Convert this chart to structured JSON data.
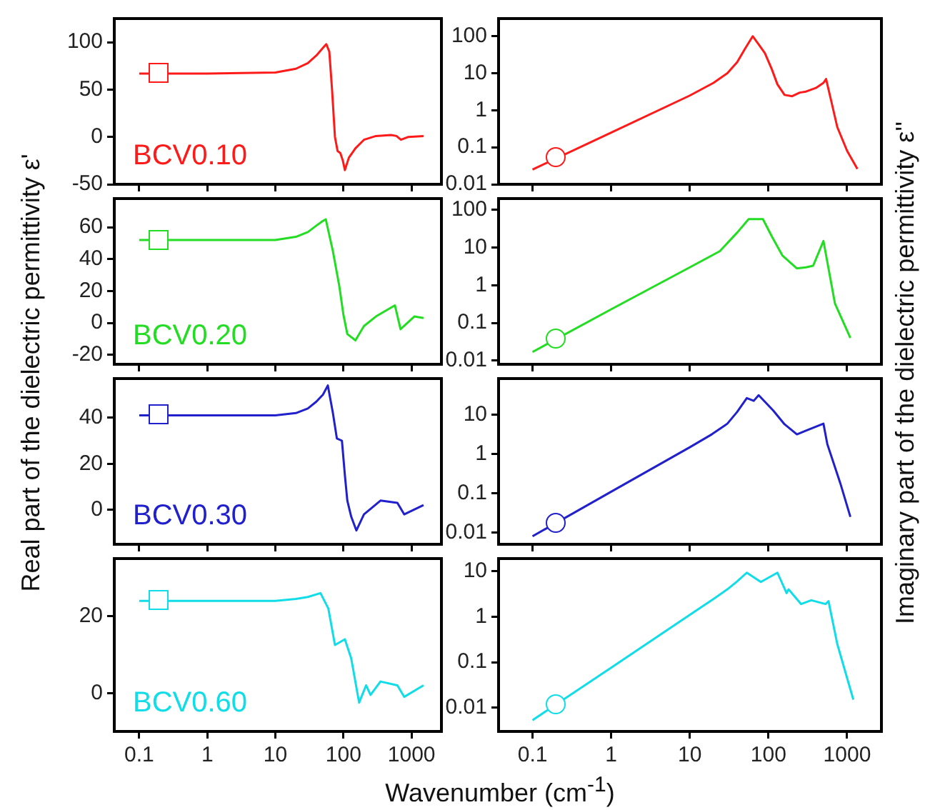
{
  "chart_data": [
    {
      "type": "line",
      "ylabel": "Real part of the dielectric permittivity ε'",
      "log": "x",
      "tick_labels": "y",
      "xlim": [
        0.043,
        2750
      ],
      "xticks": [
        0.1,
        1,
        10,
        100,
        1000
      ],
      "ylim": [
        -50,
        125
      ],
      "yticks": [
        -50,
        0,
        50,
        100
      ],
      "series": [
        {
          "name": "BCV0.10",
          "color": "#ff1a1a",
          "x": [
            0.1,
            1,
            10,
            20,
            30,
            40,
            50,
            56,
            62,
            68,
            75,
            82,
            90,
            98,
            105,
            120,
            150,
            200,
            300,
            500,
            600,
            700,
            900,
            1500
          ],
          "values": [
            67,
            67,
            68,
            72,
            78,
            86,
            94,
            98,
            90,
            50,
            0,
            -15,
            -17,
            -25,
            -35,
            -22,
            -12,
            -3,
            1,
            2,
            1,
            -3,
            0,
            1
          ]
        }
      ]
    },
    {
      "type": "line",
      "ylabel": "Imaginary part of the dielectric permittivity ε''",
      "log": "xy",
      "tick_labels": "y",
      "xlim": [
        0.037,
        2730
      ],
      "xticks": [
        0.1,
        1,
        10,
        100,
        1000
      ],
      "ylim": [
        0.01,
        300
      ],
      "yticks": [
        0.01,
        0.1,
        1,
        10,
        100
      ],
      "series": [
        {
          "color": "#ff1a1a",
          "x": [
            0.1,
            1,
            10,
            20,
            30,
            40,
            50,
            63,
            75,
            90,
            110,
            130,
            160,
            200,
            250,
            300,
            400,
            500,
            540,
            620,
            750,
            1000,
            1350
          ],
          "values": [
            0.025,
            0.25,
            2.5,
            5.5,
            10,
            20,
            45,
            100,
            60,
            35,
            13,
            5,
            2.6,
            2.4,
            3,
            3.2,
            4,
            5.5,
            7,
            2,
            0.35,
            0.08,
            0.026
          ]
        }
      ]
    },
    {
      "type": "line",
      "log": "x",
      "tick_labels": "y",
      "xlim": [
        0.043,
        2750
      ],
      "xticks": [
        0.1,
        1,
        10,
        100,
        1000
      ],
      "ylim": [
        -26,
        78
      ],
      "yticks": [
        -20,
        0,
        20,
        40,
        60
      ],
      "series": [
        {
          "name": "BCV0.20",
          "color": "#22dd22",
          "x": [
            0.1,
            1,
            10,
            20,
            30,
            40,
            50,
            55,
            70,
            87,
            100,
            114,
            150,
            200,
            300,
            570,
            690,
            1100,
            1500
          ],
          "values": [
            52,
            52,
            52,
            54,
            57,
            61,
            64,
            65,
            45,
            23,
            5,
            -7,
            -11,
            -2,
            4,
            11,
            -4,
            4,
            3
          ]
        }
      ]
    },
    {
      "type": "line",
      "log": "xy",
      "tick_labels": "y",
      "xlim": [
        0.037,
        2730
      ],
      "xticks": [
        0.1,
        1,
        10,
        100,
        1000
      ],
      "ylim": [
        0.008,
        200
      ],
      "yticks": [
        0.01,
        0.1,
        1,
        10,
        100
      ],
      "series": [
        {
          "color": "#22dd22",
          "x": [
            0.1,
            1,
            10,
            24,
            40,
            56,
            85,
            110,
            150,
            230,
            300,
            370,
            500,
            700,
            1100
          ],
          "values": [
            0.017,
            0.23,
            3,
            8,
            25,
            57,
            57,
            20,
            6.2,
            2.8,
            3,
            3.3,
            15,
            0.33,
            0.04
          ]
        }
      ]
    },
    {
      "type": "line",
      "log": "x",
      "tick_labels": "y",
      "xlim": [
        0.043,
        2750
      ],
      "xticks": [
        0.1,
        1,
        10,
        100,
        1000
      ],
      "ylim": [
        -15,
        57
      ],
      "yticks": [
        0,
        20,
        40
      ],
      "series": [
        {
          "name": "BCV0.30",
          "color": "#2020cc",
          "x": [
            0.1,
            1,
            10,
            20,
            30,
            40,
            50,
            59,
            70,
            80,
            95,
            105,
            114,
            130,
            155,
            200,
            350,
            620,
            780,
            1500
          ],
          "values": [
            41,
            41,
            41,
            42,
            44,
            47,
            50,
            54,
            42,
            31,
            30,
            15,
            4,
            -3,
            -9,
            -2,
            4,
            3,
            -2,
            2
          ]
        }
      ]
    },
    {
      "type": "line",
      "log": "xy",
      "tick_labels": "y",
      "xlim": [
        0.037,
        2730
      ],
      "xticks": [
        0.1,
        1,
        10,
        100,
        1000
      ],
      "ylim": [
        0.005,
        85
      ],
      "yticks": [
        0.01,
        0.1,
        1,
        10
      ],
      "series": [
        {
          "color": "#2020cc",
          "x": [
            0.1,
            1,
            10,
            19,
            30,
            40,
            53,
            65,
            75,
            115,
            160,
            230,
            300,
            500,
            560,
            820,
            1100
          ],
          "values": [
            0.008,
            0.11,
            1.5,
            3.2,
            6,
            12,
            27,
            23,
            32,
            13,
            5.8,
            3.2,
            4,
            6,
            1.8,
            0.18,
            0.025
          ]
        }
      ]
    },
    {
      "type": "line",
      "xlabel": "Wavenumber (cm$^{-1}$)",
      "log": "x",
      "xlim": [
        0.043,
        2750
      ],
      "xticks": [
        0.1,
        1,
        10,
        100,
        1000
      ],
      "ylim": [
        -10,
        35
      ],
      "yticks": [
        0,
        20
      ],
      "series": [
        {
          "name": "BCV0.60",
          "color": "#11dde8",
          "x": [
            0.1,
            1,
            10,
            20,
            30,
            46,
            60,
            75,
            105,
            130,
            170,
            215,
            250,
            350,
            620,
            780,
            1500
          ],
          "values": [
            24,
            24,
            24,
            24.5,
            25,
            26,
            22,
            12.5,
            14,
            9,
            -2.5,
            2,
            -0.5,
            3,
            2,
            -1,
            2
          ]
        }
      ]
    },
    {
      "type": "line",
      "log": "xy",
      "xlim": [
        0.037,
        2730
      ],
      "xticks": [
        0.1,
        1,
        10,
        100,
        1000
      ],
      "ylim": [
        0.003,
        19
      ],
      "yticks": [
        0.01,
        0.1,
        1,
        10
      ],
      "series": [
        {
          "color": "#11dde8",
          "x": [
            0.1,
            1,
            10,
            21,
            30,
            40,
            53,
            80,
            130,
            170,
            180,
            260,
            350,
            530,
            580,
            750,
            1200
          ],
          "values": [
            0.0053,
            0.076,
            1.1,
            2.6,
            4,
            6,
            9.3,
            5.8,
            9.3,
            3.3,
            4,
            1.9,
            2.3,
            1.9,
            2.2,
            0.25,
            0.015
          ]
        }
      ]
    }
  ]
}
